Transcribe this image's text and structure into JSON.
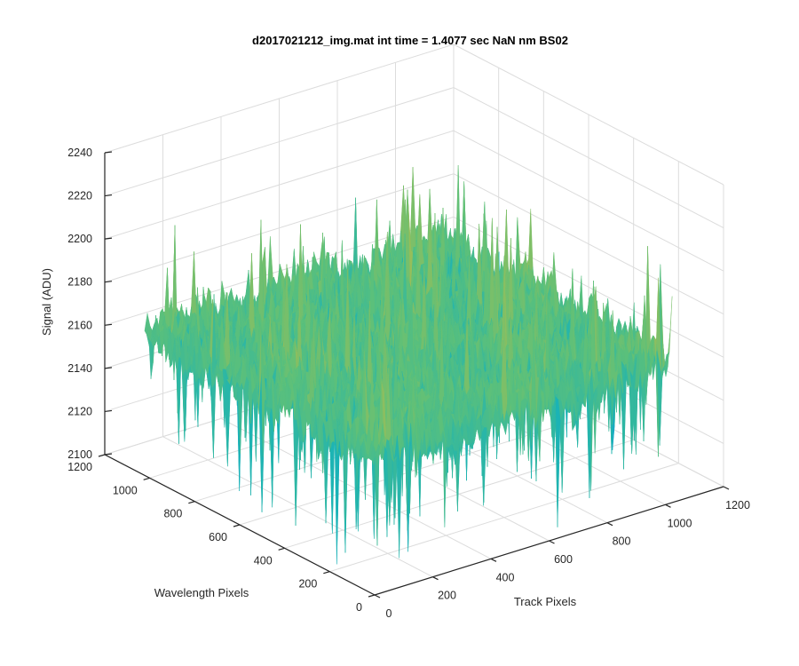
{
  "chart_data": {
    "type": "surface",
    "title": "d2017021212_img.mat int time = 1.4077 sec  NaN nm BS02",
    "xlabel": "Track Pixels",
    "ylabel": "Wavelength Pixels",
    "zlabel": "Signal (ADU)",
    "xlim": [
      0,
      1200
    ],
    "ylim": [
      0,
      1200
    ],
    "zlim": [
      2100,
      2240
    ],
    "x_ticks": [
      "0",
      "200",
      "400",
      "600",
      "800",
      "1000",
      "1200"
    ],
    "y_ticks": [
      "0",
      "200",
      "400",
      "600",
      "800",
      "1000",
      "1200"
    ],
    "z_ticks": [
      "2100",
      "2120",
      "2140",
      "2160",
      "2180",
      "2200",
      "2220",
      "2240"
    ],
    "data_extent": {
      "x": [
        1,
        1024
      ],
      "y": [
        1,
        1024
      ]
    },
    "signal_mean": 2165,
    "signal_typical_range": [
      2140,
      2195
    ],
    "signal_min_spikes": 2105,
    "signal_max_spikes": 2215,
    "grid": true,
    "colormap": [
      "#3d26a8",
      "#0f9bd6",
      "#1ab3b6",
      "#5cc07a",
      "#b8bd48",
      "#f2c82b",
      "#f9fb0e"
    ]
  }
}
